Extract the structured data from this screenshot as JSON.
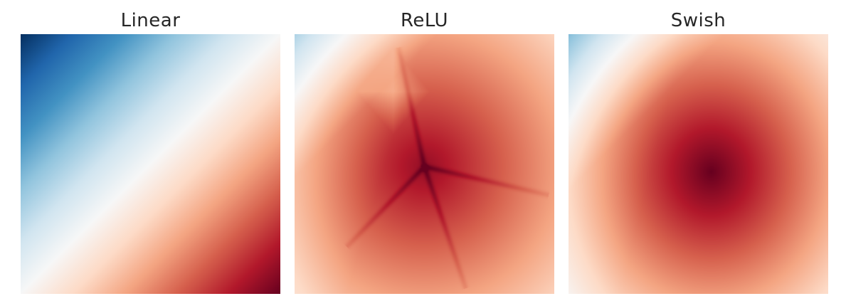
{
  "chart_data": [
    {
      "type": "heatmap",
      "title": "Linear",
      "colormap": "RdBu_r",
      "colors": {
        "low": "#053061",
        "mid": "#f7f7f7",
        "high": "#67001f"
      },
      "grid": false,
      "axes_visible": false
    },
    {
      "type": "heatmap",
      "title": "ReLU",
      "colormap": "RdBu_r",
      "colors": {
        "low": "#053061",
        "mid": "#f7f7f7",
        "high": "#67001f"
      },
      "grid": false,
      "axes_visible": false
    },
    {
      "type": "heatmap",
      "title": "Swish",
      "colormap": "RdBu_r",
      "colors": {
        "low": "#053061",
        "mid": "#f7f7f7",
        "high": "#67001f"
      },
      "grid": false,
      "axes_visible": false
    }
  ]
}
